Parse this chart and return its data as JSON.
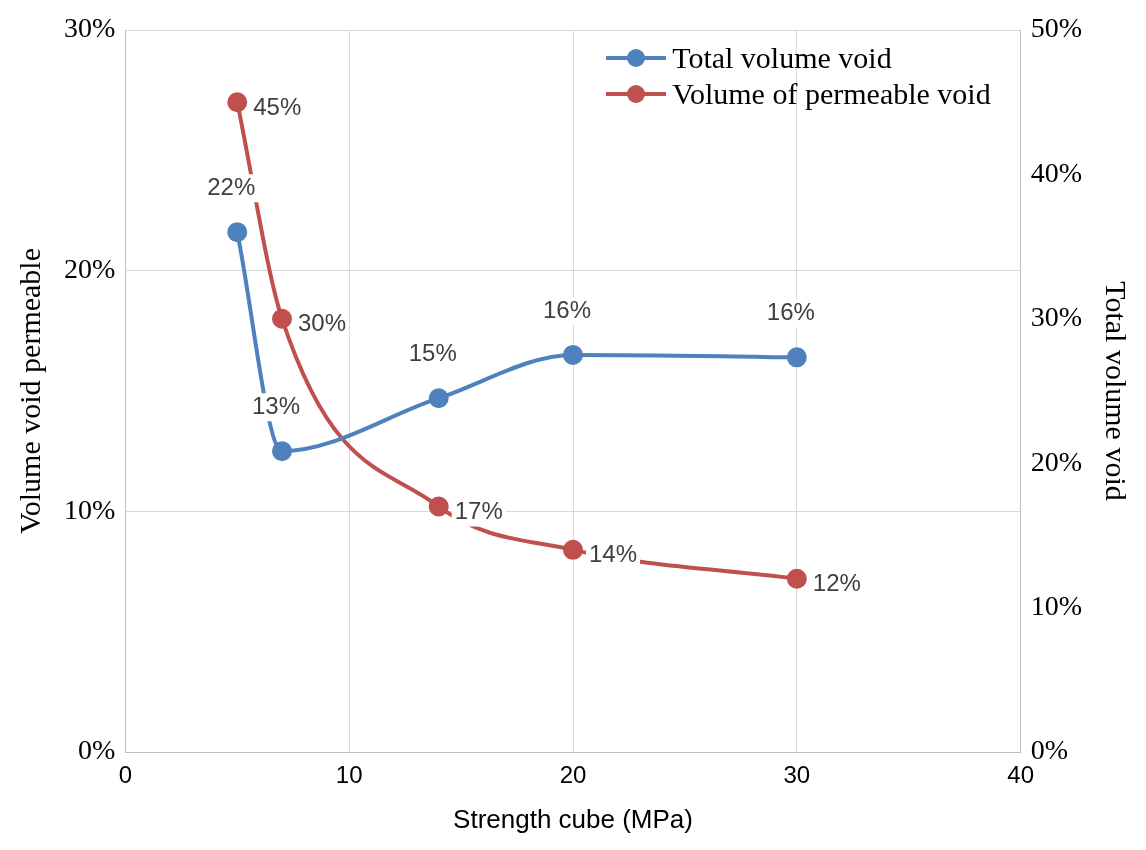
{
  "chart_data": {
    "type": "line",
    "xlabel": "Strength cube (MPa)",
    "ylabel": "Volume void permeable",
    "y2label": "Total volume void",
    "xlim": [
      0,
      40
    ],
    "xticks": [
      0,
      10,
      20,
      30,
      40
    ],
    "ylim": [
      0,
      30
    ],
    "yticks": [
      {
        "value": 0,
        "label": "0%"
      },
      {
        "value": 10,
        "label": "10%"
      },
      {
        "value": 20,
        "label": "20%"
      },
      {
        "value": 30,
        "label": "30%"
      }
    ],
    "y2lim": [
      0,
      50
    ],
    "y2ticks": [
      {
        "value": 0,
        "label": "0%"
      },
      {
        "value": 10,
        "label": "10%"
      },
      {
        "value": 20,
        "label": "20%"
      },
      {
        "value": 30,
        "label": "30%"
      },
      {
        "value": 40,
        "label": "40%"
      },
      {
        "value": 50,
        "label": "50%"
      }
    ],
    "grid": true,
    "legend": "top right",
    "marker": "circle",
    "line_style": "solid",
    "series": [
      {
        "name": "Total volume void",
        "color": "#4f81bd",
        "x": [
          5,
          7,
          14,
          20,
          30
        ],
        "values": [
          21.6,
          12.5,
          14.7,
          16.5,
          16.4
        ],
        "value_labels": [
          "22%",
          "13%",
          "15%",
          "16%",
          "16%"
        ]
      },
      {
        "name": "Volume of permeable void",
        "color": "#c0504d",
        "axis": "y2",
        "x": [
          5,
          7,
          14,
          20,
          30
        ],
        "values": [
          45,
          30,
          17,
          14,
          12
        ],
        "value_labels": [
          "45%",
          "30%",
          "17%",
          "14%",
          "12%"
        ]
      }
    ]
  }
}
